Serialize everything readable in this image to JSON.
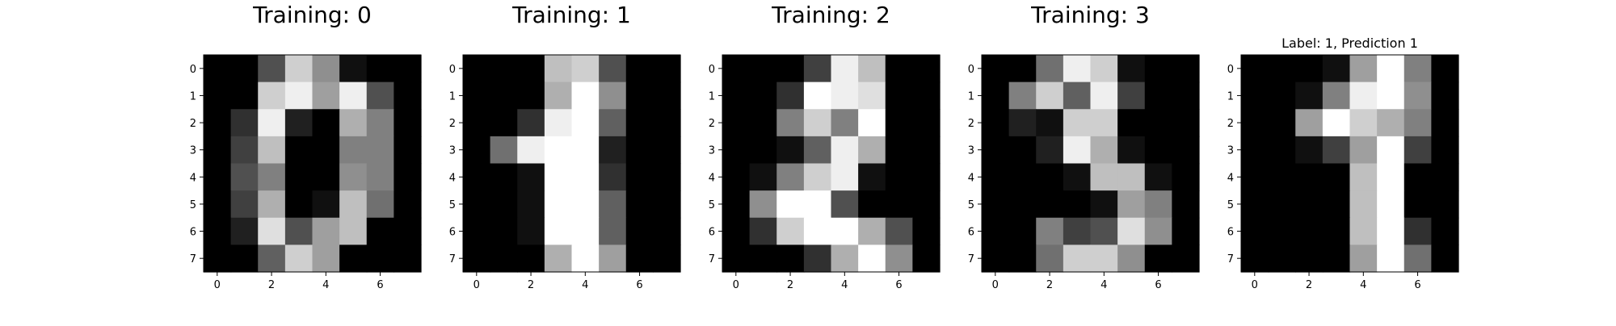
{
  "chart_data": [
    {
      "type": "heatmap",
      "title": "Training: 0",
      "colormap": "gray",
      "value_range": [
        0,
        16
      ],
      "xlim": [
        -0.5,
        7.5
      ],
      "ylim": [
        7.5,
        -0.5
      ],
      "xticks": [
        "0",
        "2",
        "4",
        "6"
      ],
      "yticks": [
        "0",
        "1",
        "2",
        "3",
        "4",
        "5",
        "6",
        "7"
      ],
      "grid": false,
      "values": [
        [
          0,
          0,
          5,
          13,
          9,
          1,
          0,
          0
        ],
        [
          0,
          0,
          13,
          15,
          10,
          15,
          5,
          0
        ],
        [
          0,
          3,
          15,
          2,
          0,
          11,
          8,
          0
        ],
        [
          0,
          4,
          12,
          0,
          0,
          8,
          8,
          0
        ],
        [
          0,
          5,
          8,
          0,
          0,
          9,
          8,
          0
        ],
        [
          0,
          4,
          11,
          0,
          1,
          12,
          7,
          0
        ],
        [
          0,
          2,
          14,
          5,
          10,
          12,
          0,
          0
        ],
        [
          0,
          0,
          6,
          13,
          10,
          0,
          0,
          0
        ]
      ]
    },
    {
      "type": "heatmap",
      "title": "Training: 1",
      "colormap": "gray",
      "value_range": [
        0,
        16
      ],
      "xlim": [
        -0.5,
        7.5
      ],
      "ylim": [
        7.5,
        -0.5
      ],
      "xticks": [
        "0",
        "2",
        "4",
        "6"
      ],
      "yticks": [
        "0",
        "1",
        "2",
        "3",
        "4",
        "5",
        "6",
        "7"
      ],
      "grid": false,
      "values": [
        [
          0,
          0,
          0,
          12,
          13,
          5,
          0,
          0
        ],
        [
          0,
          0,
          0,
          11,
          16,
          9,
          0,
          0
        ],
        [
          0,
          0,
          3,
          15,
          16,
          6,
          0,
          0
        ],
        [
          0,
          7,
          15,
          16,
          16,
          2,
          0,
          0
        ],
        [
          0,
          0,
          1,
          16,
          16,
          3,
          0,
          0
        ],
        [
          0,
          0,
          1,
          16,
          16,
          6,
          0,
          0
        ],
        [
          0,
          0,
          1,
          16,
          16,
          6,
          0,
          0
        ],
        [
          0,
          0,
          0,
          11,
          16,
          10,
          0,
          0
        ]
      ]
    },
    {
      "type": "heatmap",
      "title": "Training: 2",
      "colormap": "gray",
      "value_range": [
        0,
        16
      ],
      "xlim": [
        -0.5,
        7.5
      ],
      "ylim": [
        7.5,
        -0.5
      ],
      "xticks": [
        "0",
        "2",
        "4",
        "6"
      ],
      "yticks": [
        "0",
        "1",
        "2",
        "3",
        "4",
        "5",
        "6",
        "7"
      ],
      "grid": false,
      "values": [
        [
          0,
          0,
          0,
          4,
          15,
          12,
          0,
          0
        ],
        [
          0,
          0,
          3,
          16,
          15,
          14,
          0,
          0
        ],
        [
          0,
          0,
          8,
          13,
          8,
          16,
          0,
          0
        ],
        [
          0,
          0,
          1,
          6,
          15,
          11,
          0,
          0
        ],
        [
          0,
          1,
          8,
          13,
          15,
          1,
          0,
          0
        ],
        [
          0,
          9,
          16,
          16,
          5,
          0,
          0,
          0
        ],
        [
          0,
          3,
          13,
          16,
          16,
          11,
          5,
          0
        ],
        [
          0,
          0,
          0,
          3,
          11,
          16,
          9,
          0
        ]
      ]
    },
    {
      "type": "heatmap",
      "title": "Training: 3",
      "colormap": "gray",
      "value_range": [
        0,
        16
      ],
      "xlim": [
        -0.5,
        7.5
      ],
      "ylim": [
        7.5,
        -0.5
      ],
      "xticks": [
        "0",
        "2",
        "4",
        "6"
      ],
      "yticks": [
        "0",
        "1",
        "2",
        "3",
        "4",
        "5",
        "6",
        "7"
      ],
      "grid": false,
      "values": [
        [
          0,
          0,
          7,
          15,
          13,
          1,
          0,
          0
        ],
        [
          0,
          8,
          13,
          6,
          15,
          4,
          0,
          0
        ],
        [
          0,
          2,
          1,
          13,
          13,
          0,
          0,
          0
        ],
        [
          0,
          0,
          2,
          15,
          11,
          1,
          0,
          0
        ],
        [
          0,
          0,
          0,
          1,
          12,
          12,
          1,
          0
        ],
        [
          0,
          0,
          0,
          0,
          1,
          10,
          8,
          0
        ],
        [
          0,
          0,
          8,
          4,
          5,
          14,
          9,
          0
        ],
        [
          0,
          0,
          7,
          13,
          13,
          9,
          0,
          0
        ]
      ]
    },
    {
      "type": "heatmap",
      "title": "Label: 1, Prediction 1",
      "colormap": "gray",
      "value_range": [
        0,
        16
      ],
      "xlim": [
        -0.5,
        7.5
      ],
      "ylim": [
        7.5,
        -0.5
      ],
      "xticks": [
        "0",
        "2",
        "4",
        "6"
      ],
      "yticks": [
        "0",
        "1",
        "2",
        "3",
        "4",
        "5",
        "6",
        "7"
      ],
      "grid": false,
      "values": [
        [
          0,
          0,
          0,
          1,
          10,
          16,
          8,
          0
        ],
        [
          0,
          0,
          1,
          8,
          15,
          16,
          9,
          0
        ],
        [
          0,
          0,
          10,
          16,
          13,
          11,
          8,
          0
        ],
        [
          0,
          0,
          1,
          4,
          10,
          16,
          4,
          0
        ],
        [
          0,
          0,
          0,
          0,
          12,
          16,
          0,
          0
        ],
        [
          0,
          0,
          0,
          0,
          12,
          16,
          0,
          0
        ],
        [
          0,
          0,
          0,
          0,
          12,
          16,
          3,
          0
        ],
        [
          0,
          0,
          0,
          0,
          10,
          16,
          7,
          0
        ]
      ]
    }
  ]
}
